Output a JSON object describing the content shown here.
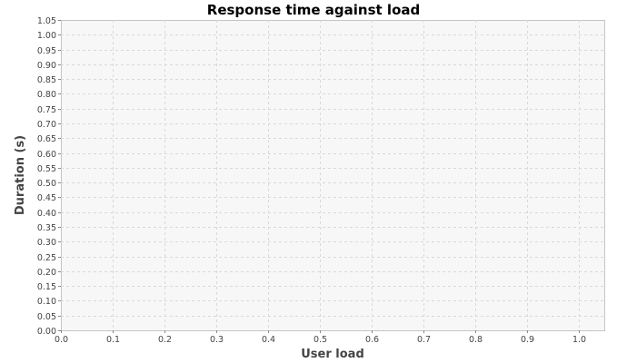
{
  "chart_data": {
    "type": "line",
    "title": "Response time against load",
    "xlabel": "User load",
    "ylabel": "Duration (s)",
    "xlim": [
      0.0,
      1.05
    ],
    "ylim": [
      0.0,
      1.05
    ],
    "x_ticks": [
      "0.0",
      "0.1",
      "0.2",
      "0.3",
      "0.4",
      "0.5",
      "0.6",
      "0.7",
      "0.8",
      "0.9",
      "1.0"
    ],
    "y_ticks": [
      "0.00",
      "0.05",
      "0.10",
      "0.15",
      "0.20",
      "0.25",
      "0.30",
      "0.35",
      "0.40",
      "0.45",
      "0.50",
      "0.55",
      "0.60",
      "0.65",
      "0.70",
      "0.75",
      "0.80",
      "0.85",
      "0.90",
      "0.95",
      "1.00",
      "1.05"
    ],
    "grid": true,
    "series": [],
    "colors": {
      "plot_background": "#f7f7f7",
      "grid": "#d9d9d9",
      "border": "#c4c4c4"
    }
  }
}
